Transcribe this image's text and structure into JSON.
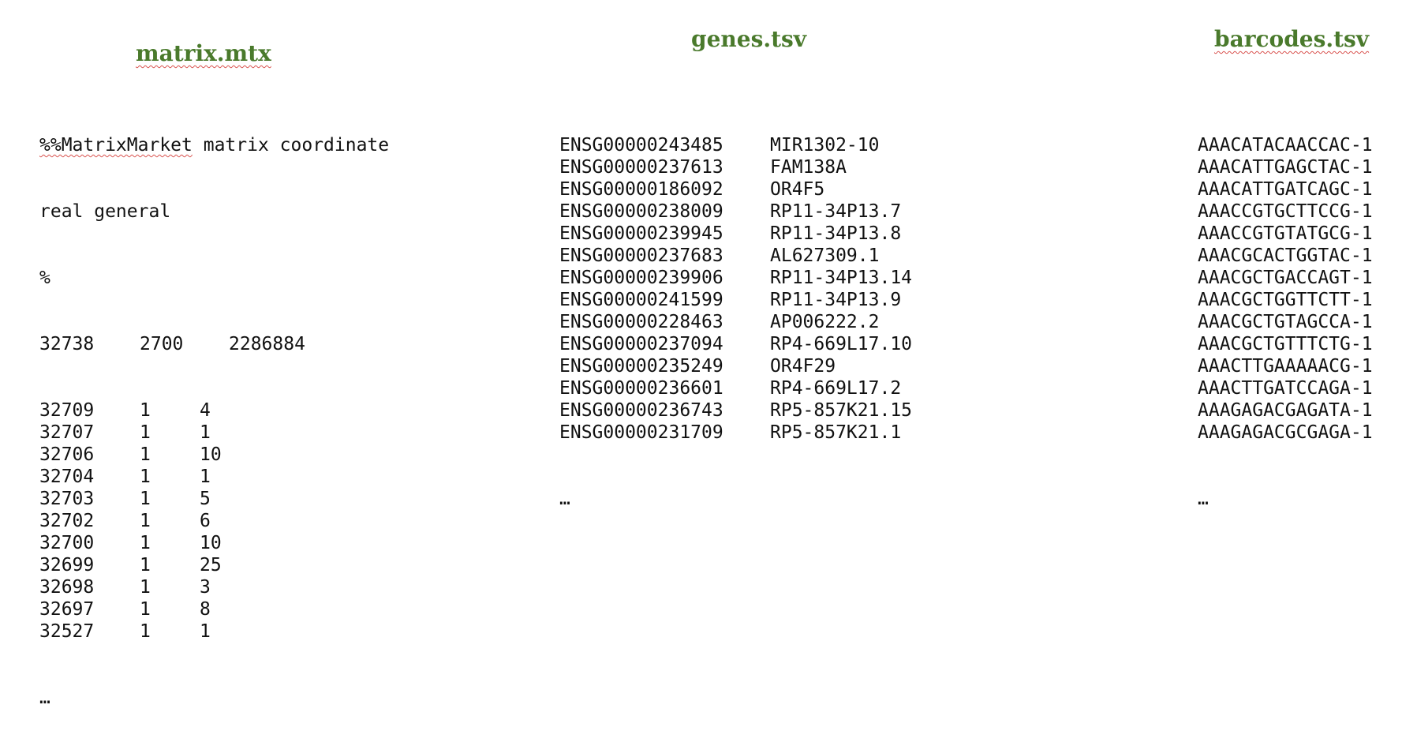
{
  "headings": {
    "matrix": "matrix.mtx",
    "genes": "genes.tsv",
    "barcodes": "barcodes.tsv"
  },
  "matrix": {
    "header_line1_word1": "%%MatrixMarket",
    "header_line1_rest": " matrix coordinate",
    "header_line2": "real general",
    "comment_line": "%",
    "dims": [
      "32738",
      "2700",
      "2286884"
    ],
    "rows": [
      [
        "32709",
        "1",
        "4"
      ],
      [
        "32707",
        "1",
        "1"
      ],
      [
        "32706",
        "1",
        "10"
      ],
      [
        "32704",
        "1",
        "1"
      ],
      [
        "32703",
        "1",
        "5"
      ],
      [
        "32702",
        "1",
        "6"
      ],
      [
        "32700",
        "1",
        "10"
      ],
      [
        "32699",
        "1",
        "25"
      ],
      [
        "32698",
        "1",
        "3"
      ],
      [
        "32697",
        "1",
        "8"
      ],
      [
        "32527",
        "1",
        "1"
      ]
    ],
    "ellipsis": "…"
  },
  "genes": {
    "rows": [
      [
        "ENSG00000243485",
        "MIR1302-10"
      ],
      [
        "ENSG00000237613",
        "FAM138A"
      ],
      [
        "ENSG00000186092",
        "OR4F5"
      ],
      [
        "ENSG00000238009",
        "RP11-34P13.7"
      ],
      [
        "ENSG00000239945",
        "RP11-34P13.8"
      ],
      [
        "ENSG00000237683",
        "AL627309.1"
      ],
      [
        "ENSG00000239906",
        "RP11-34P13.14"
      ],
      [
        "ENSG00000241599",
        "RP11-34P13.9"
      ],
      [
        "ENSG00000228463",
        "AP006222.2"
      ],
      [
        "ENSG00000237094",
        "RP4-669L17.10"
      ],
      [
        "ENSG00000235249",
        "OR4F29"
      ],
      [
        "ENSG00000236601",
        "RP4-669L17.2"
      ],
      [
        "ENSG00000236743",
        "RP5-857K21.15"
      ],
      [
        "ENSG00000231709",
        "RP5-857K21.1"
      ]
    ],
    "ellipsis": "…"
  },
  "barcodes": {
    "rows": [
      "AAACATACAACCAC-1",
      "AAACATTGAGCTAC-1",
      "AAACATTGATCAGC-1",
      "AAACCGTGCTTCCG-1",
      "AAACCGTGTATGCG-1",
      "AAACGCACTGGTAC-1",
      "AAACGCTGACCAGT-1",
      "AAACGCTGGTTCTT-1",
      "AAACGCTGTAGCCA-1",
      "AAACGCTGTTTCTG-1",
      "AAACTTGAAAAACG-1",
      "AAACTTGATCCAGA-1",
      "AAAGAGACGAGATA-1",
      "AAAGAGACGCGAGA-1"
    ],
    "ellipsis": "…"
  }
}
